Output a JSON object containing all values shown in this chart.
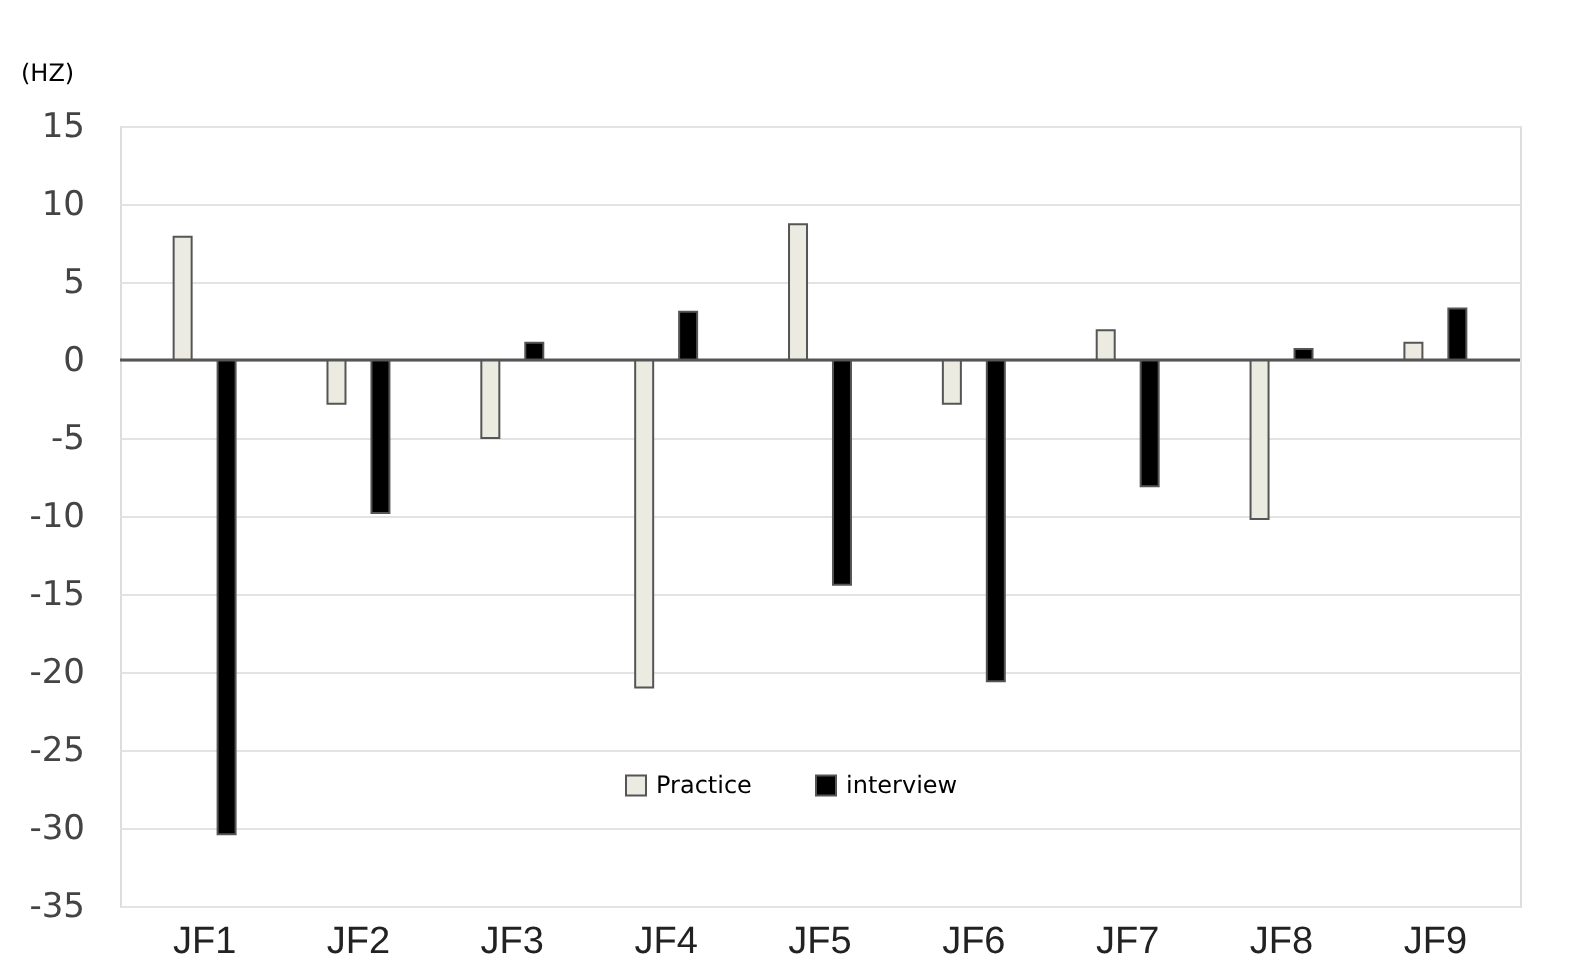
{
  "chart_data": {
    "type": "bar",
    "ylabel": "(HZ)",
    "categories": [
      "JF1",
      "JF2",
      "JF3",
      "JF4",
      "JF5",
      "JF6",
      "JF7",
      "JF8",
      "JF9"
    ],
    "series": [
      {
        "name": "Practice",
        "color": "#ecebe2",
        "values": [
          7.9,
          -2.8,
          -5,
          -21,
          8.7,
          -2.8,
          1.9,
          -10.2,
          1.1
        ]
      },
      {
        "name": "interview",
        "color": "#000000",
        "values": [
          -30.4,
          -9.8,
          1.1,
          3.1,
          -14.4,
          -20.6,
          -8.1,
          0.7,
          3.3
        ]
      }
    ],
    "ylim": [
      -35,
      15
    ],
    "yticks": [
      -35,
      -30,
      -25,
      -20,
      -15,
      -10,
      -5,
      0,
      5,
      10,
      15
    ],
    "grid": "y",
    "legend": "bottom"
  }
}
